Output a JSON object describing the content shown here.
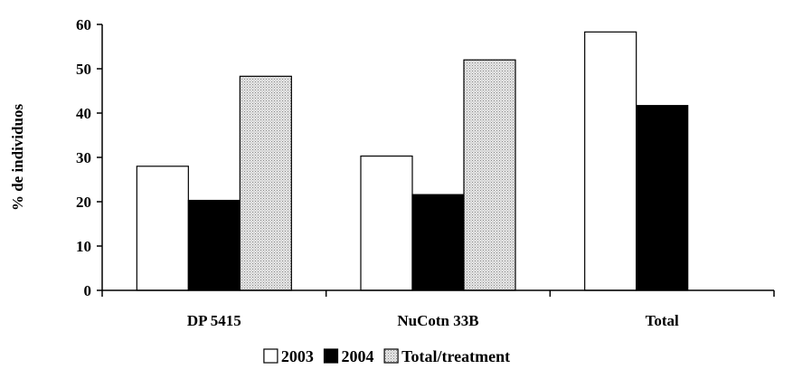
{
  "chart_data": {
    "type": "bar",
    "title": "",
    "xlabel": "",
    "ylabel": "% de individuos",
    "ylim": [
      0,
      60
    ],
    "yticks": [
      0,
      10,
      20,
      30,
      40,
      50,
      60
    ],
    "grid": false,
    "legend_position": "bottom",
    "categories": [
      "DP 5415",
      "NuCotn 33B",
      "Total"
    ],
    "series": [
      {
        "name": "2003",
        "color": "#ffffff",
        "pattern": "none",
        "values": [
          28.0,
          30.3,
          58.3
        ]
      },
      {
        "name": "2004",
        "color": "#000000",
        "pattern": "none",
        "values": [
          20.3,
          21.6,
          41.7
        ]
      },
      {
        "name": "Total/treatment",
        "color": "#d9d9d9",
        "pattern": "dotted",
        "values": [
          48.3,
          52.0,
          null
        ]
      }
    ]
  }
}
